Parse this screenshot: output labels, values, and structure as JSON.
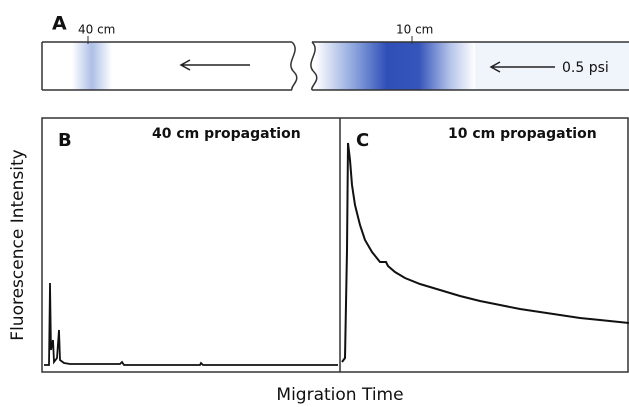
{
  "panel_a": {
    "label": "A",
    "marker_left": "40 cm",
    "marker_right": "10 cm",
    "pressure": "0.5 psi"
  },
  "panel_b": {
    "label": "B",
    "title": "40 cm propagation"
  },
  "panel_c": {
    "label": "C",
    "title": "10 cm propagation"
  },
  "y_axis_label": "Fluorescence Intensity",
  "x_axis_label": "Migration Time"
}
